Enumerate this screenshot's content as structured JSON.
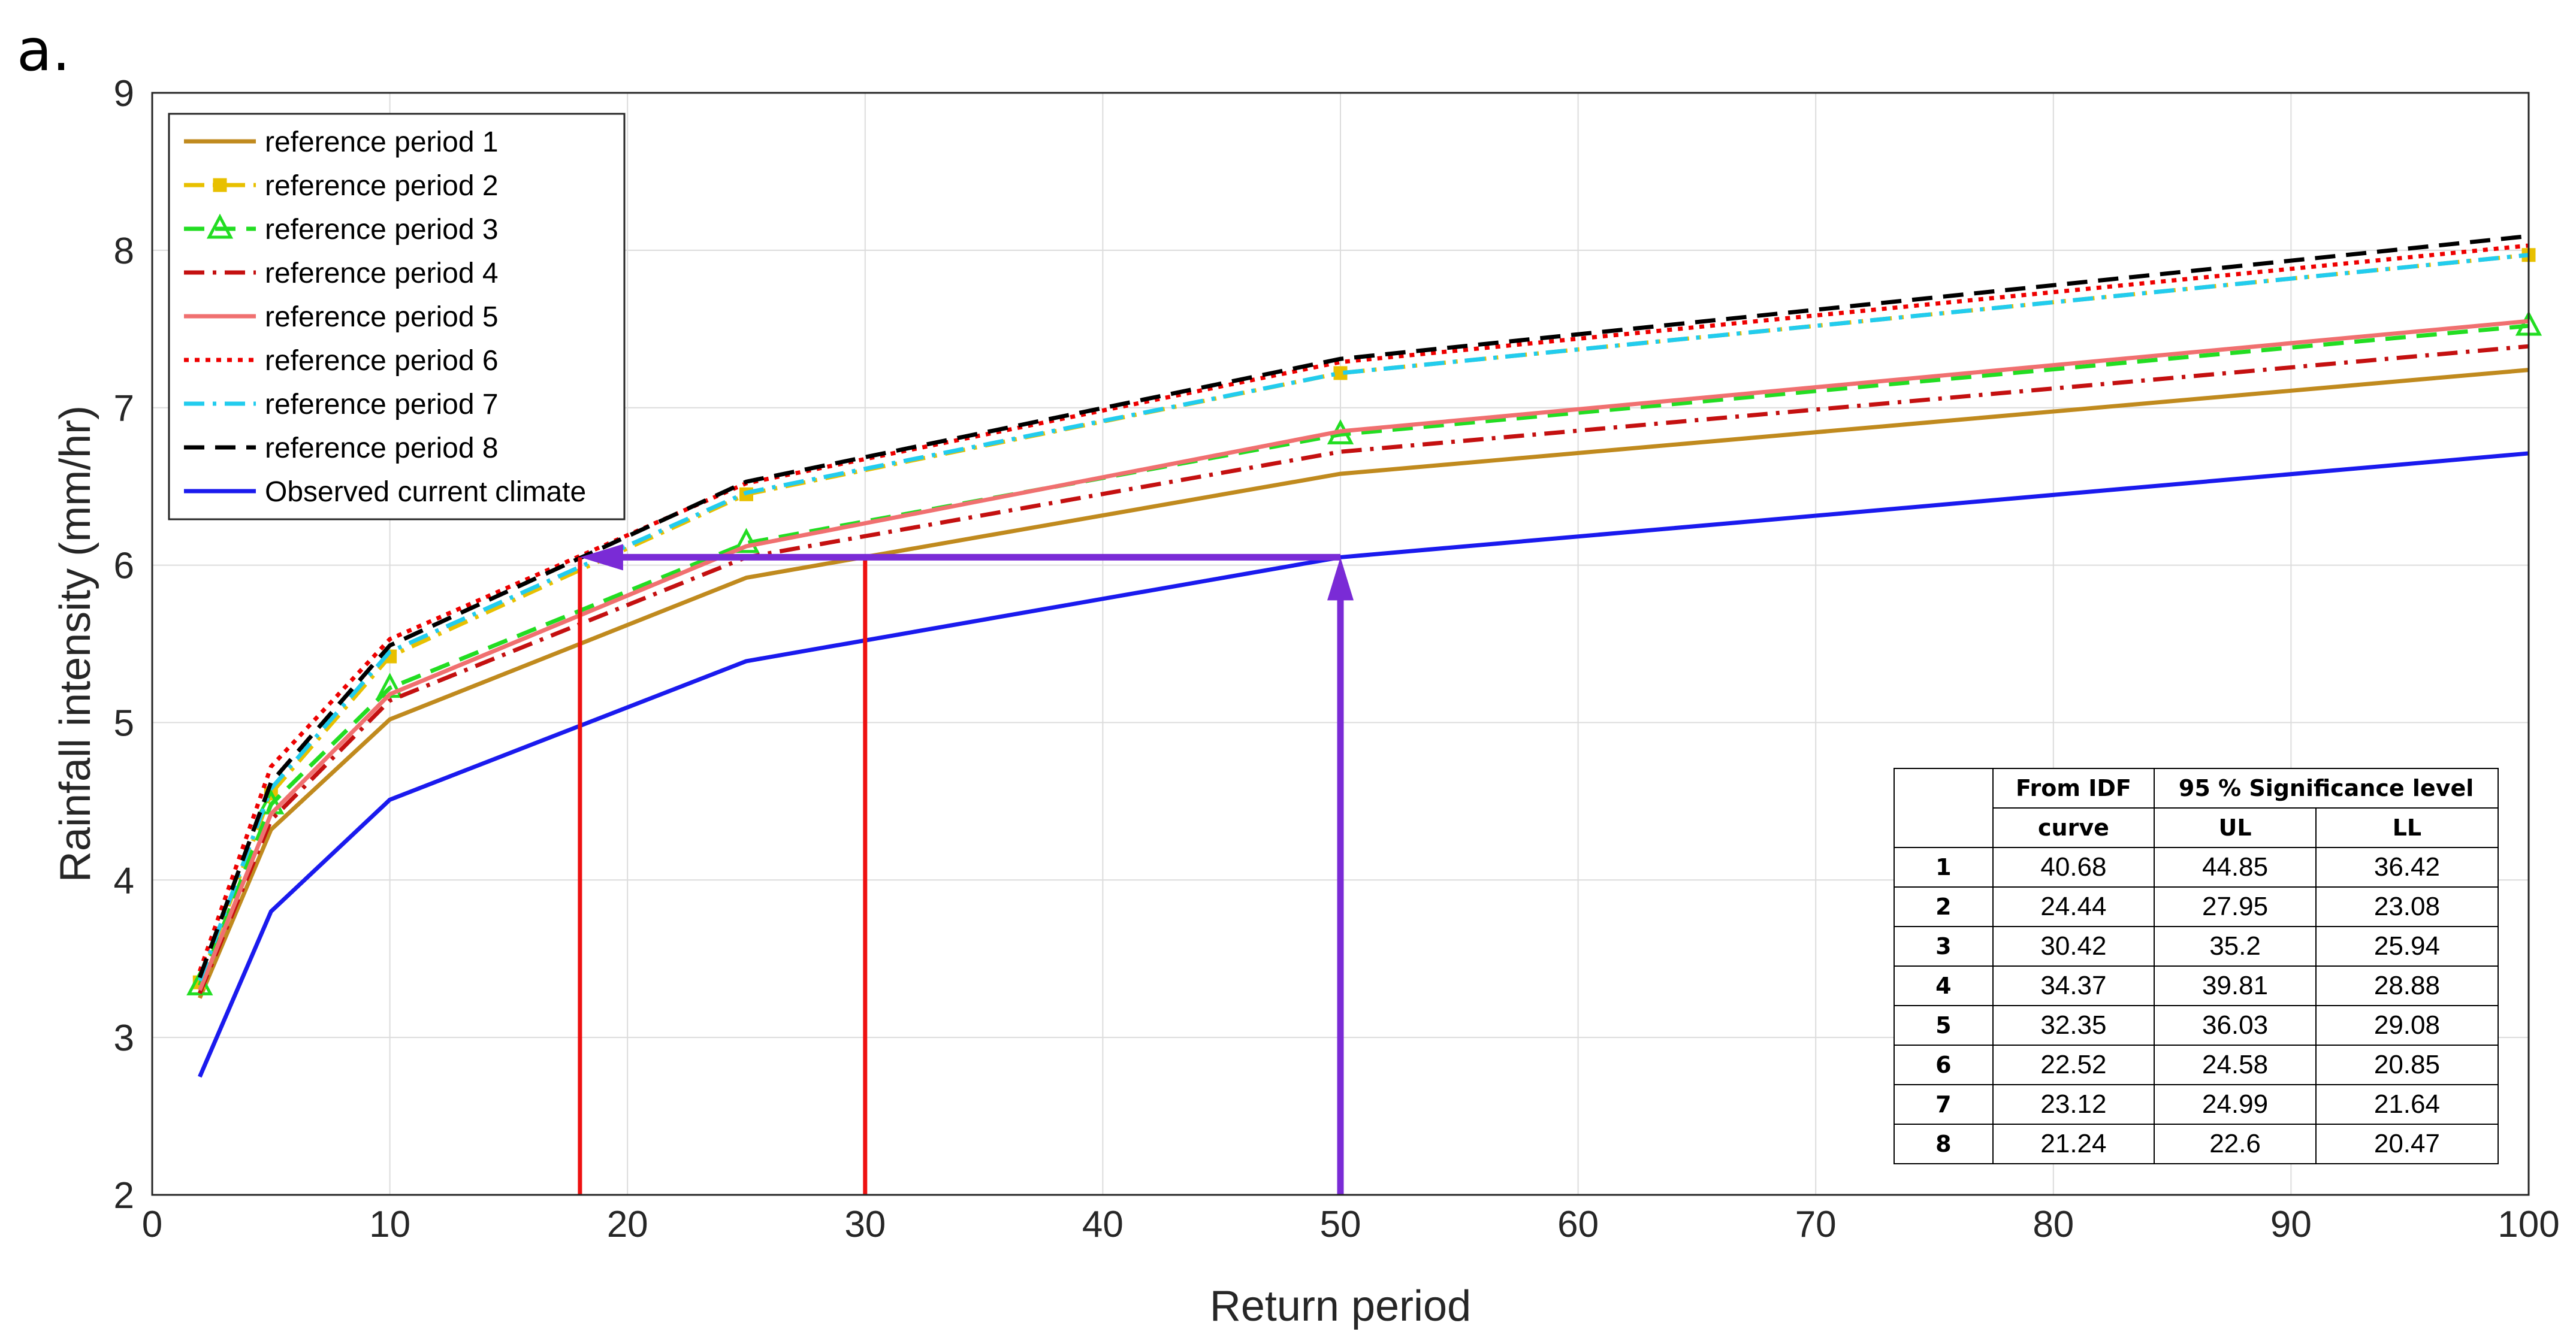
{
  "panel_label": "a.",
  "chart_data": {
    "type": "line",
    "xlabel": "Return period",
    "ylabel": "Rainfall intensity (mm/hr)",
    "xlim": [
      0,
      100
    ],
    "ylim": [
      2,
      9
    ],
    "xticks": [
      0,
      10,
      20,
      30,
      40,
      50,
      60,
      70,
      80,
      90,
      100
    ],
    "yticks": [
      2,
      3,
      4,
      5,
      6,
      7,
      8,
      9
    ],
    "grid": true,
    "legend_position": "top-left",
    "x": [
      2,
      5,
      10,
      25,
      50,
      100
    ],
    "series": [
      {
        "name": "reference period 1",
        "color": "#c08a1e",
        "style": "solid",
        "marker": "none",
        "values": [
          3.25,
          4.32,
          5.02,
          5.92,
          6.58,
          7.24
        ]
      },
      {
        "name": "reference period 2",
        "color": "#e8c000",
        "style": "dashdot",
        "marker": "square",
        "values": [
          3.35,
          4.55,
          5.42,
          6.45,
          7.22,
          7.97
        ]
      },
      {
        "name": "reference period 3",
        "color": "#22dd22",
        "style": "dashed",
        "marker": "triangle",
        "values": [
          3.33,
          4.48,
          5.22,
          6.14,
          6.83,
          7.52
        ]
      },
      {
        "name": "reference period 4",
        "color": "#c41010",
        "style": "dashdot",
        "marker": "none",
        "values": [
          3.28,
          4.38,
          5.14,
          6.05,
          6.72,
          7.39
        ]
      },
      {
        "name": "reference period 5",
        "color": "#f07070",
        "style": "solid",
        "marker": "none",
        "values": [
          3.3,
          4.42,
          5.18,
          6.12,
          6.85,
          7.55
        ]
      },
      {
        "name": "reference period 6",
        "color": "#ee0000",
        "style": "dotted",
        "marker": "none",
        "values": [
          3.42,
          4.72,
          5.53,
          6.52,
          7.29,
          8.03
        ]
      },
      {
        "name": "reference period 7",
        "color": "#22ccee",
        "style": "dashdot",
        "marker": "none",
        "values": [
          3.36,
          4.58,
          5.45,
          6.46,
          7.22,
          7.97
        ]
      },
      {
        "name": "reference period 8",
        "color": "#000000",
        "style": "dashed",
        "marker": "none",
        "values": [
          3.38,
          4.62,
          5.49,
          6.53,
          7.31,
          8.09
        ]
      },
      {
        "name": "Observed current climate",
        "color": "#1a1aee",
        "style": "solid",
        "marker": "none",
        "values": [
          2.75,
          3.8,
          4.51,
          5.39,
          6.05,
          6.71
        ]
      }
    ],
    "annotations": {
      "red_verticals": [
        18,
        30
      ],
      "red_color": "#ee1111",
      "purple_color": "#7a2bd6",
      "purple_vertical_x": 50,
      "purple_horizontal_y": 6.05,
      "purple_horizontal_to_x": 18
    },
    "table": {
      "header_row1": [
        "",
        "From IDF",
        "95 % Significance level"
      ],
      "header_row2": [
        "",
        "curve",
        "UL",
        "LL"
      ],
      "rows": [
        [
          "1",
          "40.68",
          "44.85",
          "36.42"
        ],
        [
          "2",
          "24.44",
          "27.95",
          "23.08"
        ],
        [
          "3",
          "30.42",
          "35.2",
          "25.94"
        ],
        [
          "4",
          "34.37",
          "39.81",
          "28.88"
        ],
        [
          "5",
          "32.35",
          "36.03",
          "29.08"
        ],
        [
          "6",
          "22.52",
          "24.58",
          "20.85"
        ],
        [
          "7",
          "23.12",
          "24.99",
          "21.64"
        ],
        [
          "8",
          "21.24",
          "22.6",
          "20.47"
        ]
      ]
    }
  }
}
